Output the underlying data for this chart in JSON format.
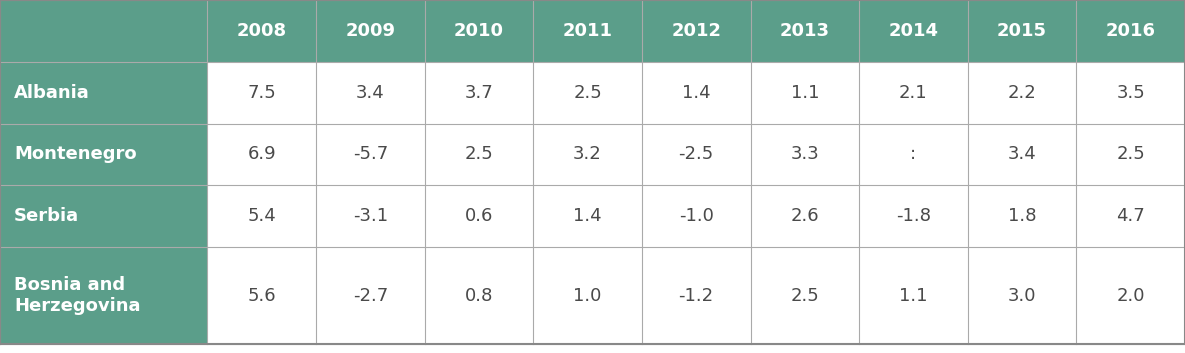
{
  "header_years": [
    "2008",
    "2009",
    "2010",
    "2011",
    "2012",
    "2013",
    "2014",
    "2015",
    "2016"
  ],
  "rows": [
    {
      "country": "Albania",
      "values": [
        "7.5",
        "3.4",
        "3.7",
        "2.5",
        "1.4",
        "1.1",
        "2.1",
        "2.2",
        "3.5"
      ]
    },
    {
      "country": "Montenegro",
      "values": [
        "6.9",
        "-5.7",
        "2.5",
        "3.2",
        "-2.5",
        "3.3",
        ":",
        "3.4",
        "2.5"
      ]
    },
    {
      "country": "Serbia",
      "values": [
        "5.4",
        "-3.1",
        "0.6",
        "1.4",
        "-1.0",
        "2.6",
        "-1.8",
        "1.8",
        "4.7"
      ]
    },
    {
      "country": "Bosnia and\nHerzegovina",
      "values": [
        "5.6",
        "-2.7",
        "0.8",
        "1.0",
        "-1.2",
        "2.5",
        "1.1",
        "3.0",
        "2.0"
      ]
    }
  ],
  "header_bg_color": "#5B9E8A",
  "row_label_bg_color": "#5B9E8A",
  "cell_bg_color": "#FFFFFF",
  "header_text_color": "#FFFFFF",
  "row_label_text_color": "#FFFFFF",
  "cell_text_color": "#4A4A4A",
  "grid_color": "#AAAAAA",
  "outer_border_color": "#888888",
  "header_font_size": 13,
  "cell_font_size": 13,
  "row_label_font_size": 13
}
